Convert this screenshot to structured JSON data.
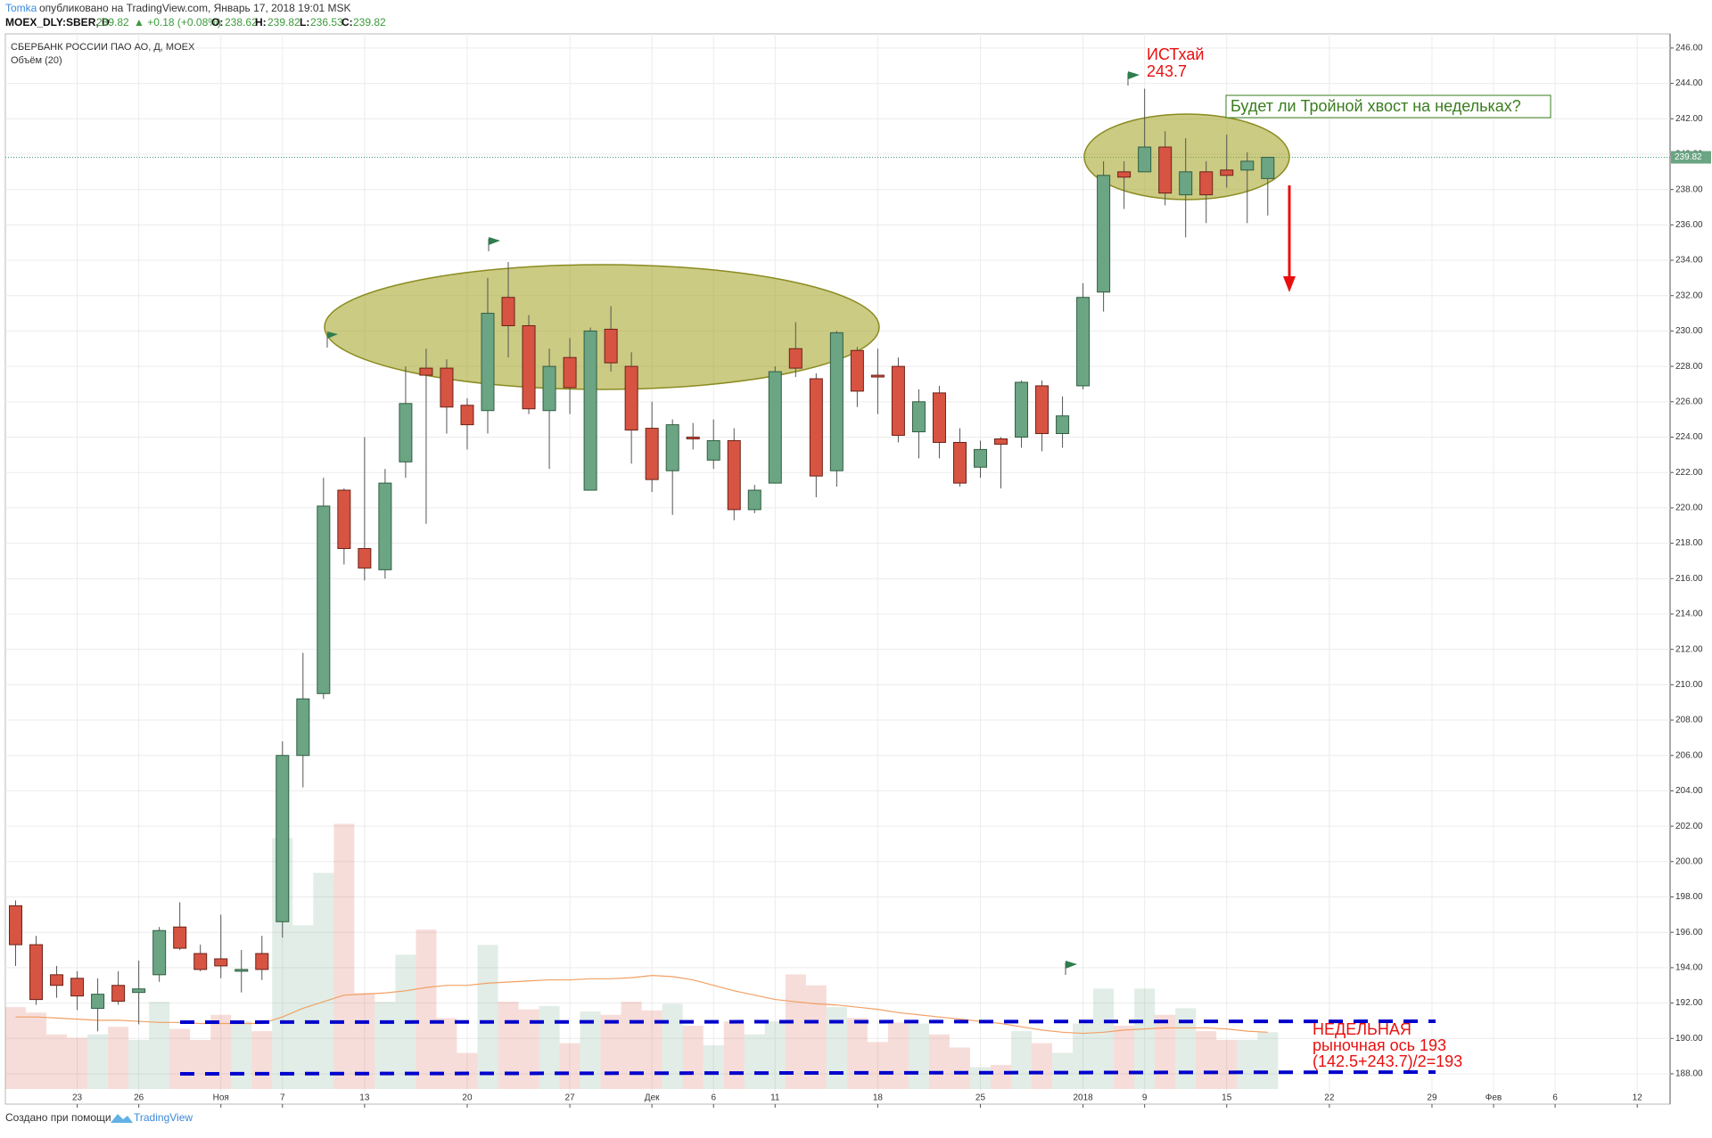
{
  "chart_data": {
    "type": "candlestick",
    "author": "Tomka",
    "published": "опубликовано на TradingView.com, Январь 17, 2018 19:01 MSK",
    "symbol": "MOEX_DLY:SBER, D",
    "change": "▲ +0.18 (+0.08%)",
    "ohlc_labels": [
      "O:",
      "H:",
      "L:",
      "C:"
    ],
    "title": "СБЕРБАНК РОССИИ ПАО АО, Д, MOEX",
    "subtitle": "Объём (20)",
    "footer": "Создано при помощи",
    "footer_brand": "TradingView",
    "up_color": "#6ba583",
    "down_color": "#d75442",
    "open": [
      197.5,
      195.3,
      193.6,
      193.4,
      191.7,
      193.0,
      192.6,
      193.6,
      196.3,
      194.8,
      194.5,
      193.8,
      194.8,
      196.6,
      206.0,
      209.5,
      221.0,
      217.7,
      216.5,
      222.6,
      227.9,
      227.9,
      225.8,
      225.5,
      231.9,
      230.3,
      225.5,
      228.5,
      221.0,
      230.1,
      228.0,
      224.5,
      222.1,
      224.0,
      222.7,
      223.8,
      219.9,
      221.4,
      229.0,
      227.3,
      222.1,
      228.9,
      227.5,
      228.0,
      224.3,
      226.5,
      223.7,
      222.3,
      223.9,
      224.0,
      226.9,
      224.2,
      226.9,
      232.2,
      239.0,
      239.0,
      240.4,
      237.7,
      239.0,
      239.1,
      239.1,
      238.62
    ],
    "high": [
      197.8,
      195.8,
      194.1,
      193.8,
      193.4,
      193.8,
      194.4,
      196.3,
      197.7,
      195.3,
      197.0,
      195.0,
      195.8,
      206.8,
      211.8,
      221.7,
      221.1,
      224.0,
      222.2,
      228.0,
      229.0,
      228.4,
      226.2,
      233.0,
      233.9,
      230.9,
      229.0,
      229.6,
      230.2,
      231.4,
      228.8,
      226.0,
      225.0,
      224.8,
      225.0,
      224.5,
      221.3,
      228.0,
      230.5,
      227.6,
      230.0,
      229.1,
      229.0,
      228.5,
      226.7,
      226.9,
      224.5,
      223.8,
      224.0,
      227.2,
      227.2,
      226.3,
      232.7,
      239.6,
      239.6,
      243.7,
      241.3,
      240.9,
      239.6,
      241.1,
      240.1,
      239.82
    ],
    "low": [
      194.1,
      191.9,
      192.3,
      191.6,
      190.4,
      191.9,
      190.8,
      193.2,
      195.0,
      193.8,
      193.4,
      192.6,
      193.3,
      195.7,
      204.2,
      209.2,
      216.8,
      215.9,
      216.0,
      221.7,
      219.1,
      224.2,
      223.3,
      224.2,
      228.5,
      225.3,
      222.2,
      225.3,
      221.0,
      227.7,
      222.5,
      220.9,
      219.6,
      223.3,
      222.2,
      219.3,
      219.7,
      221.4,
      227.4,
      220.6,
      221.2,
      225.7,
      225.3,
      223.7,
      222.8,
      222.8,
      221.2,
      221.7,
      221.1,
      223.4,
      223.2,
      223.4,
      226.7,
      231.1,
      236.9,
      239.0,
      237.1,
      235.3,
      236.1,
      238.1,
      236.1,
      236.53
    ],
    "close": [
      195.3,
      192.2,
      193.0,
      192.4,
      192.5,
      192.1,
      192.8,
      196.1,
      195.1,
      193.9,
      194.1,
      193.9,
      193.9,
      206.0,
      209.2,
      220.1,
      217.7,
      216.6,
      221.4,
      225.9,
      227.5,
      225.7,
      224.7,
      231.0,
      230.3,
      225.6,
      228.0,
      226.8,
      230.0,
      228.2,
      224.4,
      221.6,
      224.7,
      223.9,
      223.8,
      219.9,
      221.0,
      227.7,
      227.9,
      221.8,
      229.9,
      226.6,
      227.4,
      224.1,
      226.0,
      223.7,
      221.4,
      223.3,
      223.6,
      227.1,
      224.2,
      225.2,
      231.9,
      238.8,
      238.7,
      240.4,
      237.8,
      239.0,
      237.7,
      238.8,
      239.6,
      239.82
    ],
    "volume": [
      75,
      70,
      50,
      47,
      50,
      57,
      45,
      80,
      55,
      45,
      68,
      62,
      53,
      230,
      150,
      198,
      243,
      88,
      80,
      123,
      146,
      65,
      33,
      132,
      80,
      73,
      76,
      42,
      71,
      68,
      80,
      72,
      78,
      58,
      40,
      62,
      50,
      62,
      105,
      95,
      75,
      65,
      43,
      61,
      60,
      50,
      38,
      20,
      22,
      53,
      42,
      33,
      60,
      92,
      58,
      92,
      68,
      74,
      53,
      45,
      45,
      52
    ],
    "volume_ma": [
      66,
      66,
      65,
      64,
      63,
      63,
      62,
      61,
      61,
      60,
      60,
      60,
      60,
      66,
      74,
      80,
      86,
      87,
      88,
      90,
      93,
      95,
      95,
      97,
      98,
      99,
      100,
      100,
      101,
      101,
      102,
      104,
      103,
      100,
      95,
      90,
      86,
      82,
      80,
      78,
      77,
      75,
      73,
      70,
      68,
      66,
      64,
      62,
      60,
      57,
      54,
      52,
      51,
      52,
      54,
      55,
      56,
      56,
      56,
      55,
      53,
      52
    ],
    "xlim": [
      -0.5,
      80.6
    ],
    "xticks": [
      {
        "value": 3,
        "label": "23"
      },
      {
        "value": 6,
        "label": "26"
      },
      {
        "value": 10,
        "label": "Ноя"
      },
      {
        "value": 13,
        "label": "7"
      },
      {
        "value": 17,
        "label": "13"
      },
      {
        "value": 22,
        "label": "20"
      },
      {
        "value": 27,
        "label": "27"
      },
      {
        "value": 31,
        "label": "Дек"
      },
      {
        "value": 34,
        "label": "6"
      },
      {
        "value": 37,
        "label": "11"
      },
      {
        "value": 42,
        "label": "18"
      },
      {
        "value": 47,
        "label": "25"
      },
      {
        "value": 52,
        "label": "2018"
      },
      {
        "value": 55,
        "label": "9"
      },
      {
        "value": 59,
        "label": "15"
      },
      {
        "value": 64,
        "label": "22"
      },
      {
        "value": 69,
        "label": "29"
      },
      {
        "value": 72,
        "label": "Фев"
      },
      {
        "value": 75,
        "label": "6"
      },
      {
        "value": 79,
        "label": "12"
      }
    ],
    "ylim": [
      186.94,
      246.7
    ],
    "yticks": [
      {
        "value": 188,
        "label": "188.00"
      },
      {
        "value": 190,
        "label": "190.00"
      },
      {
        "value": 192,
        "label": "192.00"
      },
      {
        "value": 194,
        "label": "194.00"
      },
      {
        "value": 196,
        "label": "196.00"
      },
      {
        "value": 198,
        "label": "198.00"
      },
      {
        "value": 200,
        "label": "200.00"
      },
      {
        "value": 202,
        "label": "202.00"
      },
      {
        "value": 204,
        "label": "204.00"
      },
      {
        "value": 206,
        "label": "206.00"
      },
      {
        "value": 208,
        "label": "208.00"
      },
      {
        "value": 210,
        "label": "210.00"
      },
      {
        "value": 212,
        "label": "212.00"
      },
      {
        "value": 214,
        "label": "214.00"
      },
      {
        "value": 216,
        "label": "216.00"
      },
      {
        "value": 218,
        "label": "218.00"
      },
      {
        "value": 220,
        "label": "220.00"
      },
      {
        "value": 222,
        "label": "222.00"
      },
      {
        "value": 224,
        "label": "224.00"
      },
      {
        "value": 226,
        "label": "226.00"
      },
      {
        "value": 228,
        "label": "228.00"
      },
      {
        "value": 230,
        "label": "230.00"
      },
      {
        "value": 232,
        "label": "232.00"
      },
      {
        "value": 234,
        "label": "234.00"
      },
      {
        "value": 236,
        "label": "236.00"
      },
      {
        "value": 238,
        "label": "238.00"
      },
      {
        "value": 240,
        "label": "240.00"
      },
      {
        "value": 242,
        "label": "242.00"
      },
      {
        "value": 244,
        "label": "244.00"
      },
      {
        "value": 246,
        "label": "246.00"
      }
    ],
    "grid": true,
    "annotations": {
      "high_label": "ИСТхай",
      "high_value": "243.7",
      "question": "Будет ли Тройной хвост на недельках?",
      "weekly_1": "НЕДЕЛЬНАЯ",
      "weekly_2": "рыночная ось 193",
      "weekly_3": "(142.5+243.7)/2=193"
    }
  }
}
